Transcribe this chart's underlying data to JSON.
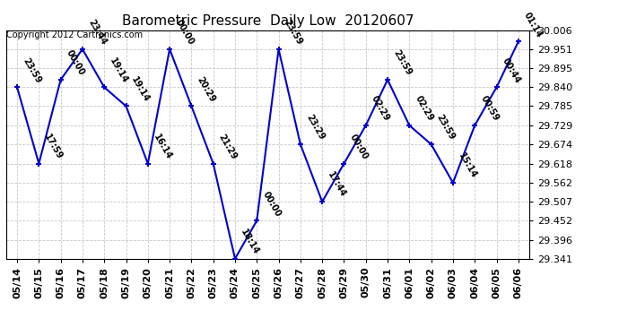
{
  "title": "Barometric Pressure  Daily Low  20120607",
  "copyright": "Copyright 2012 Cartronics.com",
  "x_labels": [
    "05/14",
    "05/15",
    "05/16",
    "05/17",
    "05/18",
    "05/19",
    "05/20",
    "05/21",
    "05/22",
    "05/23",
    "05/24",
    "05/25",
    "05/26",
    "05/27",
    "05/28",
    "05/29",
    "05/30",
    "05/31",
    "06/01",
    "06/02",
    "06/03",
    "06/04",
    "06/05",
    "06/06"
  ],
  "y_values": [
    29.84,
    29.618,
    29.862,
    29.951,
    29.84,
    29.785,
    29.618,
    29.951,
    29.785,
    29.618,
    29.341,
    29.452,
    29.951,
    29.674,
    29.507,
    29.618,
    29.729,
    29.862,
    29.729,
    29.674,
    29.562,
    29.729,
    29.84,
    29.973
  ],
  "point_labels": [
    "23:59",
    "17:59",
    "00:00",
    "23:44",
    "19:14",
    "19:14",
    "16:14",
    "00:00",
    "20:29",
    "21:29",
    "18:14",
    "00:00",
    "23:59",
    "23:29",
    "17:44",
    "00:00",
    "02:29",
    "23:59",
    "02:29",
    "23:59",
    "15:14",
    "00:59",
    "00:44",
    "01:14"
  ],
  "ylim_min": 29.341,
  "ylim_max": 30.006,
  "y_ticks": [
    29.341,
    29.396,
    29.452,
    29.507,
    29.562,
    29.618,
    29.674,
    29.729,
    29.785,
    29.84,
    29.895,
    29.951,
    30.006
  ],
  "line_color": "#0000cc",
  "marker_color": "#0000cc",
  "bg_color": "#ffffff",
  "grid_color": "#c8c8c8",
  "title_fontsize": 11,
  "label_fontsize": 8,
  "copyright_fontsize": 7,
  "point_label_fontsize": 7
}
